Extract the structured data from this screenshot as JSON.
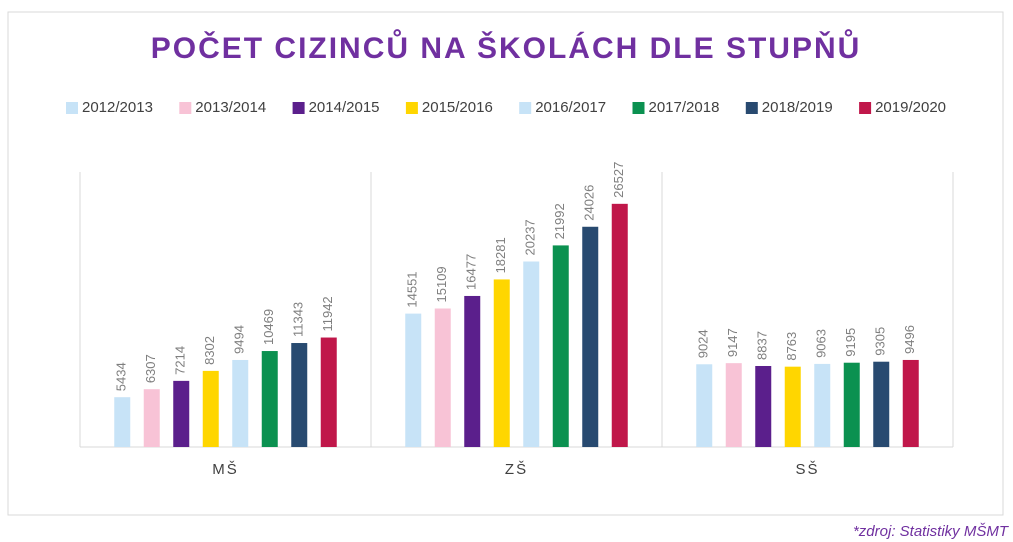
{
  "chart_data": {
    "type": "bar",
    "title": "POČET CIZINCŮ NA ŠKOLÁCH DLE STUPŇŮ",
    "source": "*zdroj: Statistiky MŠMT",
    "categories": [
      "MŠ",
      "ZŠ",
      "SŠ"
    ],
    "ylim": [
      0,
      30000
    ],
    "legend": "top",
    "series": [
      {
        "name": "2012/2013",
        "color": "#c7e3f7",
        "values": [
          5434,
          14551,
          9024
        ]
      },
      {
        "name": "2013/2014",
        "color": "#f8c3d6",
        "values": [
          6307,
          15109,
          9147
        ]
      },
      {
        "name": "2014/2015",
        "color": "#5b1f8c",
        "values": [
          7214,
          16477,
          8837
        ]
      },
      {
        "name": "2015/2016",
        "color": "#ffd600",
        "values": [
          8302,
          18281,
          8763
        ]
      },
      {
        "name": "2016/2017",
        "color": "#c7e3f7",
        "values": [
          9494,
          20237,
          9063
        ]
      },
      {
        "name": "2017/2018",
        "color": "#0b9150",
        "values": [
          10469,
          21992,
          9195
        ]
      },
      {
        "name": "2018/2019",
        "color": "#284a70",
        "values": [
          11343,
          24026,
          9305
        ]
      },
      {
        "name": "2019/2020",
        "color": "#c0174a",
        "values": [
          11942,
          26527,
          9496
        ]
      }
    ]
  }
}
